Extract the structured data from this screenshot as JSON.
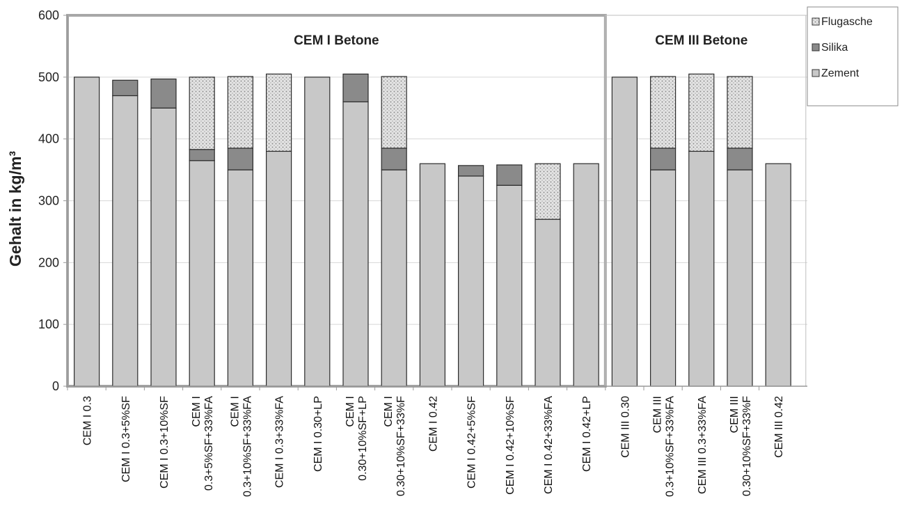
{
  "chart_data": {
    "type": "bar",
    "stacked": true,
    "ylabel": "Gehalt in kg/m³",
    "ylim": [
      0,
      600
    ],
    "yticks": [
      0,
      100,
      200,
      300,
      400,
      500,
      600
    ],
    "categories": [
      "CEM I 0.3",
      "CEM I 0.3+5%SF",
      "CEM I 0.3+10%SF",
      "CEM I 0.3+5%SF+33%FA",
      "CEM I 0.3+10%SF+33%FA",
      "CEM I 0.3+33%FA",
      "CEM I 0.30+LP",
      "CEM I 0.30+10%SF+LP",
      "CEM I 0.30+10%SF+33%F",
      "CEM I 0.42",
      "CEM I 0.42+5%SF",
      "CEM I 0.42+10%SF",
      "CEM I 0.42+33%FA",
      "CEM I 0.42+LP",
      "CEM III 0.30",
      "CEM III 0.3+10%SF+33%FA",
      "CEM III 0.3+33%FA",
      "CEM III 0.30+10%SF+33%F",
      "CEM III 0.42"
    ],
    "category_lines": [
      [
        "CEM I 0.3"
      ],
      [
        "CEM I 0.3+5%SF"
      ],
      [
        "CEM I 0.3+10%SF"
      ],
      [
        "CEM I",
        "0.3+5%SF+33%FA"
      ],
      [
        "CEM I",
        "0.3+10%SF+33%FA"
      ],
      [
        "CEM I 0.3+33%FA"
      ],
      [
        "CEM I 0.30+LP"
      ],
      [
        "CEM I",
        "0.30+10%SF+LP"
      ],
      [
        "CEM I",
        "0.30+10%SF+33%F"
      ],
      [
        "CEM I 0.42"
      ],
      [
        "CEM I 0.42+5%SF"
      ],
      [
        "CEM I 0.42+10%SF"
      ],
      [
        "CEM I 0.42+33%FA"
      ],
      [
        "CEM I 0.42+LP"
      ],
      [
        "CEM III 0.30"
      ],
      [
        "CEM III",
        "0.3+10%SF+33%FA"
      ],
      [
        "CEM III 0.3+33%FA"
      ],
      [
        "CEM III",
        "0.30+10%SF+33%F"
      ],
      [
        "CEM III 0.42"
      ]
    ],
    "series": [
      {
        "name": "Zement",
        "color": "#c8c8c8",
        "values": [
          500,
          470,
          450,
          365,
          350,
          380,
          500,
          460,
          350,
          360,
          340,
          325,
          270,
          360,
          500,
          350,
          380,
          350,
          360
        ]
      },
      {
        "name": "Silika",
        "color": "#8a8a8a",
        "values": [
          0,
          25,
          47,
          18,
          35,
          0,
          0,
          45,
          35,
          0,
          17,
          33,
          0,
          0,
          0,
          35,
          0,
          35,
          0
        ]
      },
      {
        "name": "Flugasche",
        "color": "#d8d8d8",
        "pattern": "dotted",
        "values": [
          0,
          0,
          0,
          117,
          116,
          125,
          0,
          0,
          116,
          0,
          0,
          0,
          90,
          0,
          0,
          116,
          125,
          116,
          0
        ]
      }
    ],
    "legend_order": [
      "Flugasche",
      "Silika",
      "Zement"
    ],
    "legend_position": "top-right",
    "groups": [
      {
        "label": "CEM I Betone",
        "from": 0,
        "to": 13
      },
      {
        "label": "CEM III Betone",
        "from": 14,
        "to": 18
      }
    ]
  }
}
